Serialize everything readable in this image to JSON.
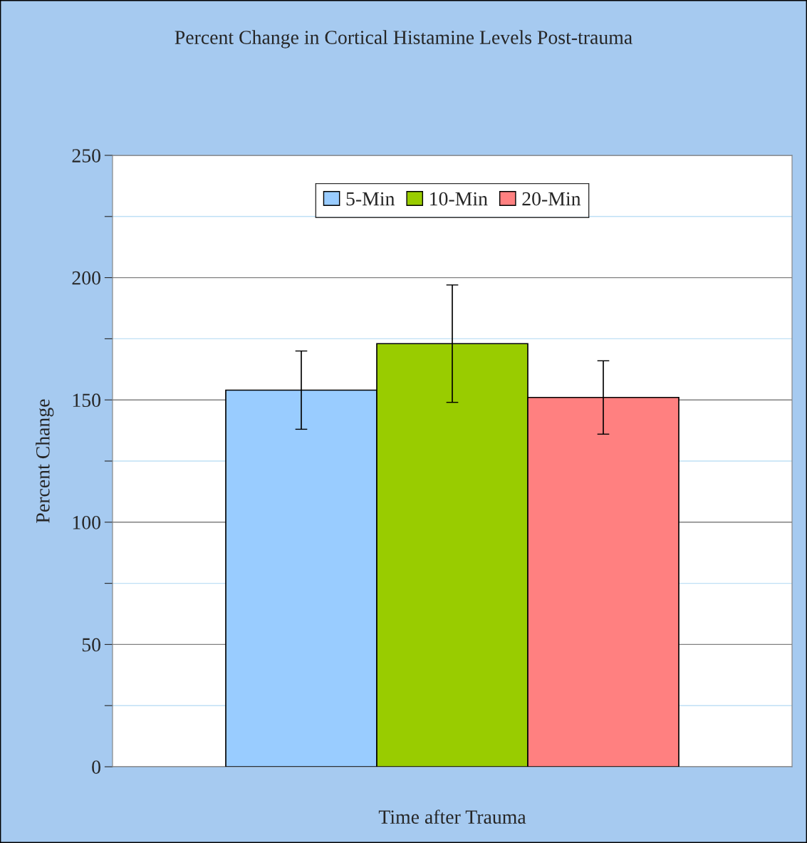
{
  "chart_data": {
    "type": "bar",
    "title": "Percent Change in Cortical Histamine Levels Post-trauma",
    "xlabel": "Time after Trauma",
    "ylabel": "Percent Change",
    "categories": [
      null
    ],
    "series": [
      {
        "name": "5-Min",
        "color": "#99ccff",
        "values": [
          154
        ],
        "errors": [
          16
        ]
      },
      {
        "name": "10-Min",
        "color": "#99cc00",
        "values": [
          173
        ],
        "errors": [
          24
        ]
      },
      {
        "name": "20-Min",
        "color": "#ff8080",
        "values": [
          151
        ],
        "errors": [
          15
        ]
      }
    ],
    "ylim": [
      0,
      250
    ],
    "yticks": [
      0,
      {
        "value": 25,
        "label": null
      },
      50,
      {
        "value": 75,
        "label": null
      },
      100,
      {
        "value": 125,
        "label": null
      },
      150,
      {
        "value": 175,
        "label": null
      },
      200,
      {
        "value": 225,
        "label": null
      },
      250
    ],
    "grid": "y",
    "legend": "top"
  }
}
